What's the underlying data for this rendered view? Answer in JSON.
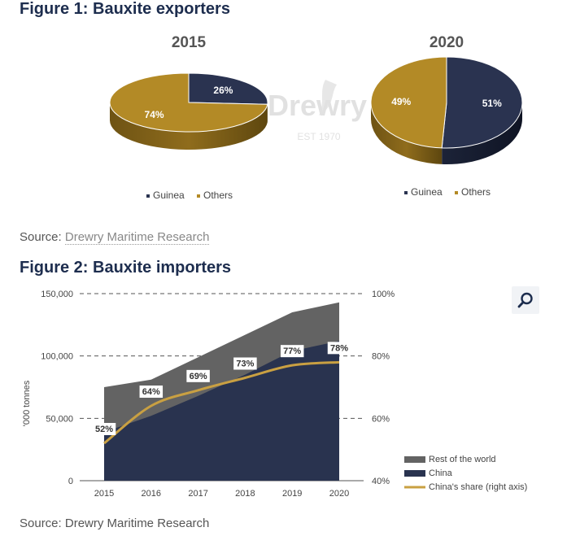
{
  "figure1": {
    "title": "Figure 1: Bauxite exporters",
    "source_prefix": "Source: ",
    "source_link": "Drewry Maritime Research"
  },
  "figure2": {
    "title": "Figure 2: Bauxite importers",
    "source": "Source: Drewry Maritime Research"
  },
  "watermark": {
    "brand": "Drewry",
    "est": "EST 1970"
  },
  "colors": {
    "guinea": "#2a3350",
    "others": "#b38a26",
    "china": "#29334f",
    "rest": "#636363",
    "share_line": "#c9a042",
    "title": "#1d2d4e"
  },
  "chart_data": [
    {
      "type": "pie",
      "title": "2015",
      "labels": [
        "Guinea",
        "Others"
      ],
      "values": [
        26,
        74
      ],
      "data_labels": [
        "26%",
        "74%"
      ],
      "legend": [
        "Guinea",
        "Others"
      ],
      "legend_position": "bottom"
    },
    {
      "type": "pie",
      "title": "2020",
      "labels": [
        "Guinea",
        "Others"
      ],
      "values": [
        51,
        49
      ],
      "data_labels": [
        "51%",
        "49%"
      ],
      "legend": [
        "Guinea",
        "Others"
      ],
      "legend_position": "bottom"
    },
    {
      "type": "area",
      "categories": [
        "2015",
        "2016",
        "2017",
        "2018",
        "2019",
        "2020"
      ],
      "series": [
        {
          "name": "Rest of the world",
          "values": [
            75000,
            81000,
            99000,
            117000,
            135000,
            143000
          ]
        },
        {
          "name": "China",
          "values": [
            39000,
            52000,
            68000,
            85000,
            104000,
            112000
          ]
        },
        {
          "name": "China's share (right axis)",
          "axis": "right",
          "values": [
            52,
            64,
            69,
            73,
            77,
            78
          ],
          "data_labels": [
            "52%",
            "64%",
            "69%",
            "73%",
            "77%",
            "78%"
          ]
        }
      ],
      "ylabel": "'000 tonnes",
      "ylim": [
        0,
        150000
      ],
      "y_ticks": [
        "0",
        "50,000",
        "100,000",
        "150,000"
      ],
      "y2lim": [
        40,
        100
      ],
      "y2_ticks": [
        "40%",
        "60%",
        "80%",
        "100%"
      ],
      "grid": true,
      "legend_position": "bottom-right"
    }
  ]
}
